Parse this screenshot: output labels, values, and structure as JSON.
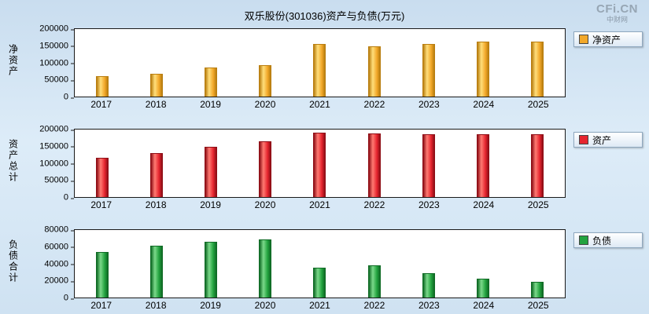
{
  "header": {
    "title": "双乐股份(301036)资产与负债(万元)",
    "logo": "CFi.CN",
    "logo_sub": "中财网"
  },
  "chart_data": [
    {
      "type": "bar",
      "name": "net-assets",
      "ylabel": "净资产",
      "legend": "净资产",
      "color": "#F2A82A",
      "color_light": "#FFDE7A",
      "color_dark": "#B97E10",
      "categories": [
        "2017",
        "2018",
        "2019",
        "2020",
        "2021",
        "2022",
        "2023",
        "2024",
        "2025"
      ],
      "values": [
        61000,
        68000,
        85000,
        94000,
        155000,
        149000,
        155000,
        162000,
        163000
      ],
      "ylim": [
        0,
        200000
      ],
      "yticks": [
        0,
        50000,
        100000,
        150000,
        200000
      ],
      "grid": false,
      "legend_position": "right"
    },
    {
      "type": "bar",
      "name": "total-assets",
      "ylabel": "资产总计",
      "legend": "资产",
      "color": "#E6252F",
      "color_light": "#FF7A72",
      "color_dark": "#8F0E16",
      "categories": [
        "2017",
        "2018",
        "2019",
        "2020",
        "2021",
        "2022",
        "2023",
        "2024",
        "2025"
      ],
      "values": [
        116000,
        130000,
        149000,
        166000,
        190000,
        188000,
        185000,
        185000,
        185000
      ],
      "ylim": [
        0,
        200000
      ],
      "yticks": [
        0,
        50000,
        100000,
        150000,
        200000
      ],
      "grid": false,
      "legend_position": "right"
    },
    {
      "type": "bar",
      "name": "total-liabilities",
      "ylabel": "负债合计",
      "legend": "负债",
      "color": "#23A33F",
      "color_light": "#7BD98A",
      "color_dark": "#0F6B25",
      "categories": [
        "2017",
        "2018",
        "2019",
        "2020",
        "2021",
        "2022",
        "2023",
        "2024",
        "2025"
      ],
      "values": [
        54000,
        61000,
        66000,
        69000,
        35000,
        38000,
        29000,
        22000,
        19000
      ],
      "ylim": [
        0,
        80000
      ],
      "yticks": [
        0,
        20000,
        40000,
        60000,
        80000
      ],
      "grid": false,
      "legend_position": "right"
    }
  ]
}
